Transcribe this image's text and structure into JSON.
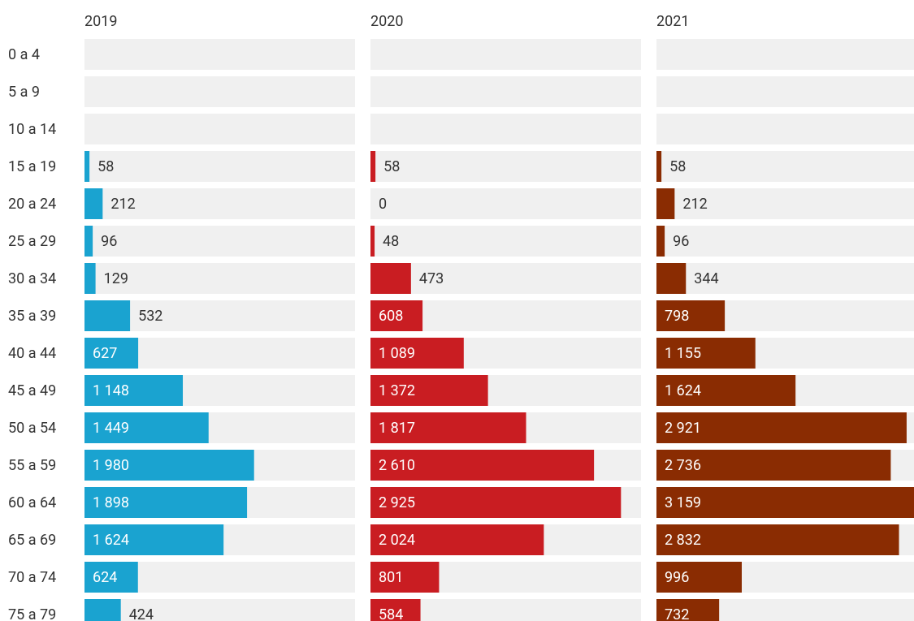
{
  "chart_data": {
    "type": "bar",
    "orientation": "horizontal",
    "categories": [
      "0 a 4",
      "5 a 9",
      "10 a 14",
      "15 a 19",
      "20 a 24",
      "25 a 29",
      "30 a 34",
      "35 a 39",
      "40 a 44",
      "45 a 49",
      "50 a 54",
      "55 a 59",
      "60 a 64",
      "65 a 69",
      "70 a 74",
      "75 a 79"
    ],
    "xlim": [
      0,
      3159
    ],
    "series": [
      {
        "name": "2019",
        "color": "#1aa3d0",
        "values": [
          null,
          null,
          null,
          58,
          212,
          96,
          129,
          532,
          627,
          1148,
          1449,
          1980,
          1898,
          1624,
          624,
          424
        ],
        "value_labels": [
          null,
          null,
          null,
          "58",
          "212",
          "96",
          "129",
          "532",
          "627",
          "1 148",
          "1 449",
          "1 980",
          "1 898",
          "1 624",
          "624",
          "424"
        ]
      },
      {
        "name": "2020",
        "color": "#c91d22",
        "values": [
          null,
          null,
          null,
          58,
          0,
          48,
          473,
          608,
          1089,
          1372,
          1817,
          2610,
          2925,
          2024,
          801,
          584
        ],
        "value_labels": [
          null,
          null,
          null,
          "58",
          "0",
          "48",
          "473",
          "608",
          "1 089",
          "1 372",
          "1 817",
          "2 610",
          "2 925",
          "2 024",
          "801",
          "584"
        ]
      },
      {
        "name": "2021",
        "color": "#8a2c02",
        "values": [
          null,
          null,
          null,
          58,
          212,
          96,
          344,
          798,
          1155,
          1624,
          2921,
          2736,
          3159,
          2832,
          996,
          732
        ],
        "value_labels": [
          null,
          null,
          null,
          "58",
          "212",
          "96",
          "344",
          "798",
          "1 155",
          "1 624",
          "2 921",
          "2 736",
          "3 159",
          "2 832",
          "996",
          "732"
        ]
      }
    ]
  }
}
